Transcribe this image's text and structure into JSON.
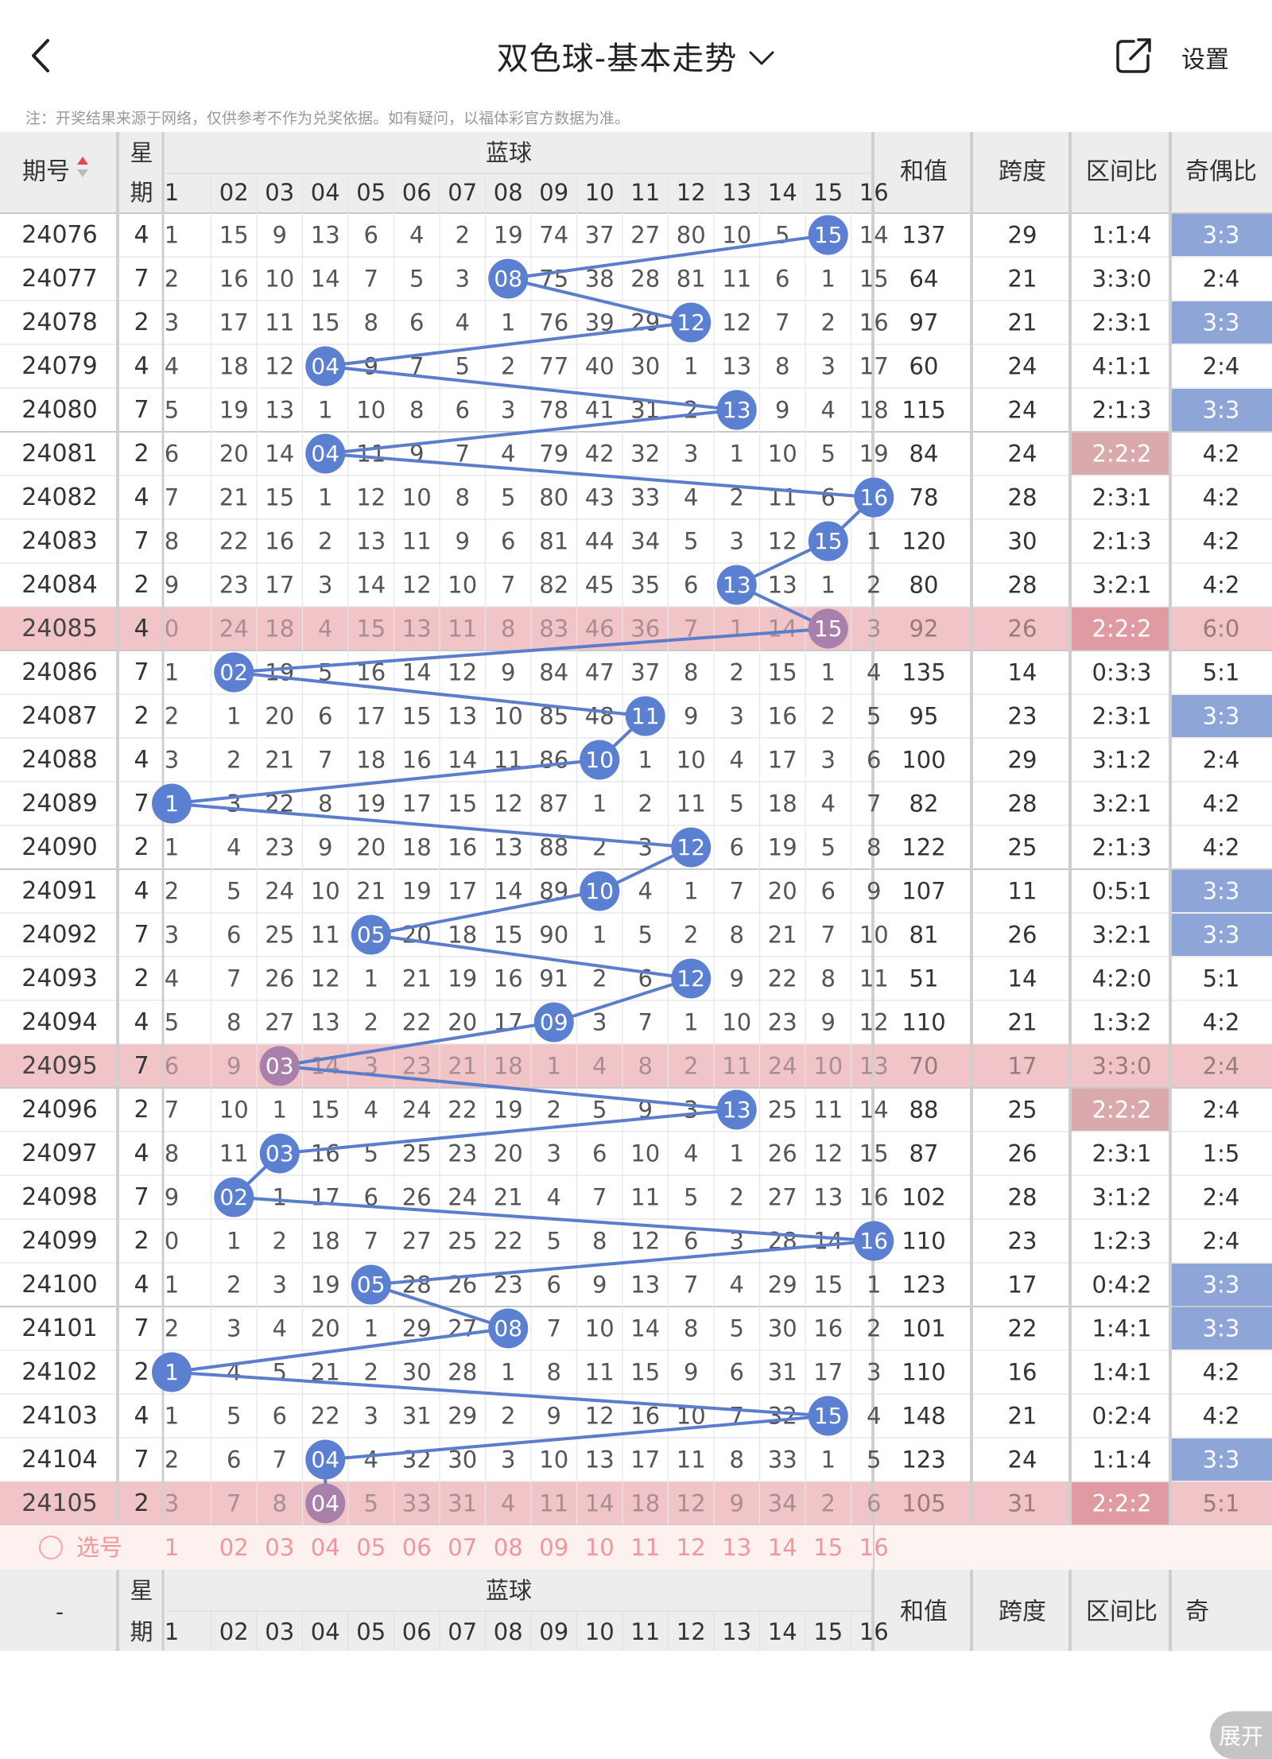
{
  "header": {
    "back_icon": "chevron-left-icon",
    "title": "双色球-基本走势",
    "title_dropdown_icon": "chevron-down-icon",
    "share_icon": "share-external-icon",
    "settings_label": "设置"
  },
  "disclaimer": "注：开奖结果来源于网络，仅供参考不作为兑奖依据。如有疑问，以福体彩官方数据为准。",
  "table": {
    "header": {
      "issue_label": "期号",
      "weekday_label_top": "星",
      "weekday_label_bottom": "期",
      "blue_group_label": "蓝球",
      "ball_labels": [
        "1",
        "02",
        "03",
        "04",
        "05",
        "06",
        "07",
        "08",
        "09",
        "10",
        "11",
        "12",
        "13",
        "14",
        "15",
        "16"
      ],
      "sum_label": "和值",
      "span_label": "跨度",
      "zone_label": "区间比",
      "parity_label": "奇偶比"
    },
    "footer": {
      "issue_label": "-",
      "parity_label_cut": "奇"
    },
    "pick_row": {
      "label": "选号",
      "balls": [
        "1",
        "02",
        "03",
        "04",
        "05",
        "06",
        "07",
        "08",
        "09",
        "10",
        "11",
        "12",
        "13",
        "14",
        "15",
        "16"
      ]
    },
    "expand_label": "展开",
    "colors": {
      "ball_blue": "#5b7fd1",
      "ball_highlight": "#a980ab",
      "line": "#5b7ecb",
      "row_highlight": "#f1c4c8",
      "parity_33": "#8ea5d8",
      "zone_222": "#d9a9ab",
      "pick_row_bg": "#fdf1ef",
      "pick_text": "#f0979c"
    },
    "rows": [
      {
        "issue": "24076",
        "weekday": "4",
        "cells": [
          "1",
          "15",
          "9",
          "13",
          "6",
          "4",
          "2",
          "19",
          "74",
          "37",
          "27",
          "80",
          "10",
          "5",
          "15",
          "14"
        ],
        "ball": 15,
        "sum": "137",
        "span": "29",
        "zone": "1:1:4",
        "parity": "3:3",
        "hl": false
      },
      {
        "issue": "24077",
        "weekday": "7",
        "cells": [
          "2",
          "16",
          "10",
          "14",
          "7",
          "5",
          "3",
          "08",
          "75",
          "38",
          "28",
          "81",
          "11",
          "6",
          "1",
          "15"
        ],
        "ball": 8,
        "sum": "64",
        "span": "21",
        "zone": "3:3:0",
        "parity": "2:4",
        "hl": false
      },
      {
        "issue": "24078",
        "weekday": "2",
        "cells": [
          "3",
          "17",
          "11",
          "15",
          "8",
          "6",
          "4",
          "1",
          "76",
          "39",
          "29",
          "12",
          "12",
          "7",
          "2",
          "16"
        ],
        "ball": 12,
        "sum": "97",
        "span": "21",
        "zone": "2:3:1",
        "parity": "3:3",
        "hl": false
      },
      {
        "issue": "24079",
        "weekday": "4",
        "cells": [
          "4",
          "18",
          "12",
          "04",
          "9",
          "7",
          "5",
          "2",
          "77",
          "40",
          "30",
          "1",
          "13",
          "8",
          "3",
          "17"
        ],
        "ball": 4,
        "sum": "60",
        "span": "24",
        "zone": "4:1:1",
        "parity": "2:4",
        "hl": false
      },
      {
        "issue": "24080",
        "weekday": "7",
        "cells": [
          "5",
          "19",
          "13",
          "1",
          "10",
          "8",
          "6",
          "3",
          "78",
          "41",
          "31",
          "2",
          "13",
          "9",
          "4",
          "18"
        ],
        "ball": 13,
        "sum": "115",
        "span": "24",
        "zone": "2:1:3",
        "parity": "3:3",
        "hl": false
      },
      {
        "issue": "24081",
        "weekday": "2",
        "cells": [
          "6",
          "20",
          "14",
          "04",
          "11",
          "9",
          "7",
          "4",
          "79",
          "42",
          "32",
          "3",
          "1",
          "10",
          "5",
          "19"
        ],
        "ball": 4,
        "sum": "84",
        "span": "24",
        "zone": "2:2:2",
        "parity": "4:2",
        "hl": false
      },
      {
        "issue": "24082",
        "weekday": "4",
        "cells": [
          "7",
          "21",
          "15",
          "1",
          "12",
          "10",
          "8",
          "5",
          "80",
          "43",
          "33",
          "4",
          "2",
          "11",
          "6",
          "16"
        ],
        "ball": 16,
        "sum": "78",
        "span": "28",
        "zone": "2:3:1",
        "parity": "4:2",
        "hl": false
      },
      {
        "issue": "24083",
        "weekday": "7",
        "cells": [
          "8",
          "22",
          "16",
          "2",
          "13",
          "11",
          "9",
          "6",
          "81",
          "44",
          "34",
          "5",
          "3",
          "12",
          "15",
          "1"
        ],
        "ball": 15,
        "sum": "120",
        "span": "30",
        "zone": "2:1:3",
        "parity": "4:2",
        "hl": false
      },
      {
        "issue": "24084",
        "weekday": "2",
        "cells": [
          "9",
          "23",
          "17",
          "3",
          "14",
          "12",
          "10",
          "7",
          "82",
          "45",
          "35",
          "6",
          "13",
          "13",
          "1",
          "2"
        ],
        "ball": 13,
        "sum": "80",
        "span": "28",
        "zone": "3:2:1",
        "parity": "4:2",
        "hl": false
      },
      {
        "issue": "24085",
        "weekday": "4",
        "cells": [
          "0",
          "24",
          "18",
          "4",
          "15",
          "13",
          "11",
          "8",
          "83",
          "46",
          "36",
          "7",
          "1",
          "14",
          "15",
          "3"
        ],
        "ball": 15,
        "sum": "92",
        "span": "26",
        "zone": "2:2:2",
        "parity": "6:0",
        "hl": true
      },
      {
        "issue": "24086",
        "weekday": "7",
        "cells": [
          "1",
          "02",
          "19",
          "5",
          "16",
          "14",
          "12",
          "9",
          "84",
          "47",
          "37",
          "8",
          "2",
          "15",
          "1",
          "4"
        ],
        "ball": 2,
        "sum": "135",
        "span": "14",
        "zone": "0:3:3",
        "parity": "5:1",
        "hl": false
      },
      {
        "issue": "24087",
        "weekday": "2",
        "cells": [
          "2",
          "1",
          "20",
          "6",
          "17",
          "15",
          "13",
          "10",
          "85",
          "48",
          "11",
          "9",
          "3",
          "16",
          "2",
          "5"
        ],
        "ball": 11,
        "sum": "95",
        "span": "23",
        "zone": "2:3:1",
        "parity": "3:3",
        "hl": false
      },
      {
        "issue": "24088",
        "weekday": "4",
        "cells": [
          "3",
          "2",
          "21",
          "7",
          "18",
          "16",
          "14",
          "11",
          "86",
          "10",
          "1",
          "10",
          "4",
          "17",
          "3",
          "6"
        ],
        "ball": 10,
        "sum": "100",
        "span": "29",
        "zone": "3:1:2",
        "parity": "2:4",
        "hl": false
      },
      {
        "issue": "24089",
        "weekday": "7",
        "cells": [
          "1",
          "3",
          "22",
          "8",
          "19",
          "17",
          "15",
          "12",
          "87",
          "1",
          "2",
          "11",
          "5",
          "18",
          "4",
          "7"
        ],
        "ball": 1,
        "sum": "82",
        "span": "28",
        "zone": "3:2:1",
        "parity": "4:2",
        "hl": false
      },
      {
        "issue": "24090",
        "weekday": "2",
        "cells": [
          "1",
          "4",
          "23",
          "9",
          "20",
          "18",
          "16",
          "13",
          "88",
          "2",
          "3",
          "12",
          "6",
          "19",
          "5",
          "8"
        ],
        "ball": 12,
        "sum": "122",
        "span": "25",
        "zone": "2:1:3",
        "parity": "4:2",
        "hl": false
      },
      {
        "issue": "24091",
        "weekday": "4",
        "cells": [
          "2",
          "5",
          "24",
          "10",
          "21",
          "19",
          "17",
          "14",
          "89",
          "10",
          "4",
          "1",
          "7",
          "20",
          "6",
          "9"
        ],
        "ball": 10,
        "sum": "107",
        "span": "11",
        "zone": "0:5:1",
        "parity": "3:3",
        "hl": false
      },
      {
        "issue": "24092",
        "weekday": "7",
        "cells": [
          "3",
          "6",
          "25",
          "11",
          "05",
          "20",
          "18",
          "15",
          "90",
          "1",
          "5",
          "2",
          "8",
          "21",
          "7",
          "10"
        ],
        "ball": 5,
        "sum": "81",
        "span": "26",
        "zone": "3:2:1",
        "parity": "3:3",
        "hl": false
      },
      {
        "issue": "24093",
        "weekday": "2",
        "cells": [
          "4",
          "7",
          "26",
          "12",
          "1",
          "21",
          "19",
          "16",
          "91",
          "2",
          "6",
          "12",
          "9",
          "22",
          "8",
          "11"
        ],
        "ball": 12,
        "sum": "51",
        "span": "14",
        "zone": "4:2:0",
        "parity": "5:1",
        "hl": false
      },
      {
        "issue": "24094",
        "weekday": "4",
        "cells": [
          "5",
          "8",
          "27",
          "13",
          "2",
          "22",
          "20",
          "17",
          "09",
          "3",
          "7",
          "1",
          "10",
          "23",
          "9",
          "12"
        ],
        "ball": 9,
        "sum": "110",
        "span": "21",
        "zone": "1:3:2",
        "parity": "4:2",
        "hl": false
      },
      {
        "issue": "24095",
        "weekday": "7",
        "cells": [
          "6",
          "9",
          "03",
          "14",
          "3",
          "23",
          "21",
          "18",
          "1",
          "4",
          "8",
          "2",
          "11",
          "24",
          "10",
          "13"
        ],
        "ball": 3,
        "sum": "70",
        "span": "17",
        "zone": "3:3:0",
        "parity": "2:4",
        "hl": true
      },
      {
        "issue": "24096",
        "weekday": "2",
        "cells": [
          "7",
          "10",
          "1",
          "15",
          "4",
          "24",
          "22",
          "19",
          "2",
          "5",
          "9",
          "3",
          "13",
          "25",
          "11",
          "14"
        ],
        "ball": 13,
        "sum": "88",
        "span": "25",
        "zone": "2:2:2",
        "parity": "2:4",
        "hl": false
      },
      {
        "issue": "24097",
        "weekday": "4",
        "cells": [
          "8",
          "11",
          "03",
          "16",
          "5",
          "25",
          "23",
          "20",
          "3",
          "6",
          "10",
          "4",
          "1",
          "26",
          "12",
          "15"
        ],
        "ball": 3,
        "sum": "87",
        "span": "26",
        "zone": "2:3:1",
        "parity": "1:5",
        "hl": false
      },
      {
        "issue": "24098",
        "weekday": "7",
        "cells": [
          "9",
          "02",
          "1",
          "17",
          "6",
          "26",
          "24",
          "21",
          "4",
          "7",
          "11",
          "5",
          "2",
          "27",
          "13",
          "16"
        ],
        "ball": 2,
        "sum": "102",
        "span": "28",
        "zone": "3:1:2",
        "parity": "2:4",
        "hl": false
      },
      {
        "issue": "24099",
        "weekday": "2",
        "cells": [
          "0",
          "1",
          "2",
          "18",
          "7",
          "27",
          "25",
          "22",
          "5",
          "8",
          "12",
          "6",
          "3",
          "28",
          "14",
          "16"
        ],
        "ball": 16,
        "sum": "110",
        "span": "23",
        "zone": "1:2:3",
        "parity": "2:4",
        "hl": false
      },
      {
        "issue": "24100",
        "weekday": "4",
        "cells": [
          "1",
          "2",
          "3",
          "19",
          "05",
          "28",
          "26",
          "23",
          "6",
          "9",
          "13",
          "7",
          "4",
          "29",
          "15",
          "1"
        ],
        "ball": 5,
        "sum": "123",
        "span": "17",
        "zone": "0:4:2",
        "parity": "3:3",
        "hl": false
      },
      {
        "issue": "24101",
        "weekday": "7",
        "cells": [
          "2",
          "3",
          "4",
          "20",
          "1",
          "29",
          "27",
          "08",
          "7",
          "10",
          "14",
          "8",
          "5",
          "30",
          "16",
          "2"
        ],
        "ball": 8,
        "sum": "101",
        "span": "22",
        "zone": "1:4:1",
        "parity": "3:3",
        "hl": false
      },
      {
        "issue": "24102",
        "weekday": "2",
        "cells": [
          "1",
          "4",
          "5",
          "21",
          "2",
          "30",
          "28",
          "1",
          "8",
          "11",
          "15",
          "9",
          "6",
          "31",
          "17",
          "3"
        ],
        "ball": 1,
        "sum": "110",
        "span": "16",
        "zone": "1:4:1",
        "parity": "4:2",
        "hl": false
      },
      {
        "issue": "24103",
        "weekday": "4",
        "cells": [
          "1",
          "5",
          "6",
          "22",
          "3",
          "31",
          "29",
          "2",
          "9",
          "12",
          "16",
          "10",
          "7",
          "32",
          "15",
          "4"
        ],
        "ball": 15,
        "sum": "148",
        "span": "21",
        "zone": "0:2:4",
        "parity": "4:2",
        "hl": false
      },
      {
        "issue": "24104",
        "weekday": "7",
        "cells": [
          "2",
          "6",
          "7",
          "04",
          "4",
          "32",
          "30",
          "3",
          "10",
          "13",
          "17",
          "11",
          "8",
          "33",
          "1",
          "5"
        ],
        "ball": 4,
        "sum": "123",
        "span": "24",
        "zone": "1:1:4",
        "parity": "3:3",
        "hl": false
      },
      {
        "issue": "24105",
        "weekday": "2",
        "cells": [
          "3",
          "7",
          "8",
          "04",
          "5",
          "33",
          "31",
          "4",
          "11",
          "14",
          "18",
          "12",
          "9",
          "34",
          "2",
          "6"
        ],
        "ball": 4,
        "sum": "105",
        "span": "31",
        "zone": "2:2:2",
        "parity": "5:1",
        "hl": true
      }
    ]
  }
}
